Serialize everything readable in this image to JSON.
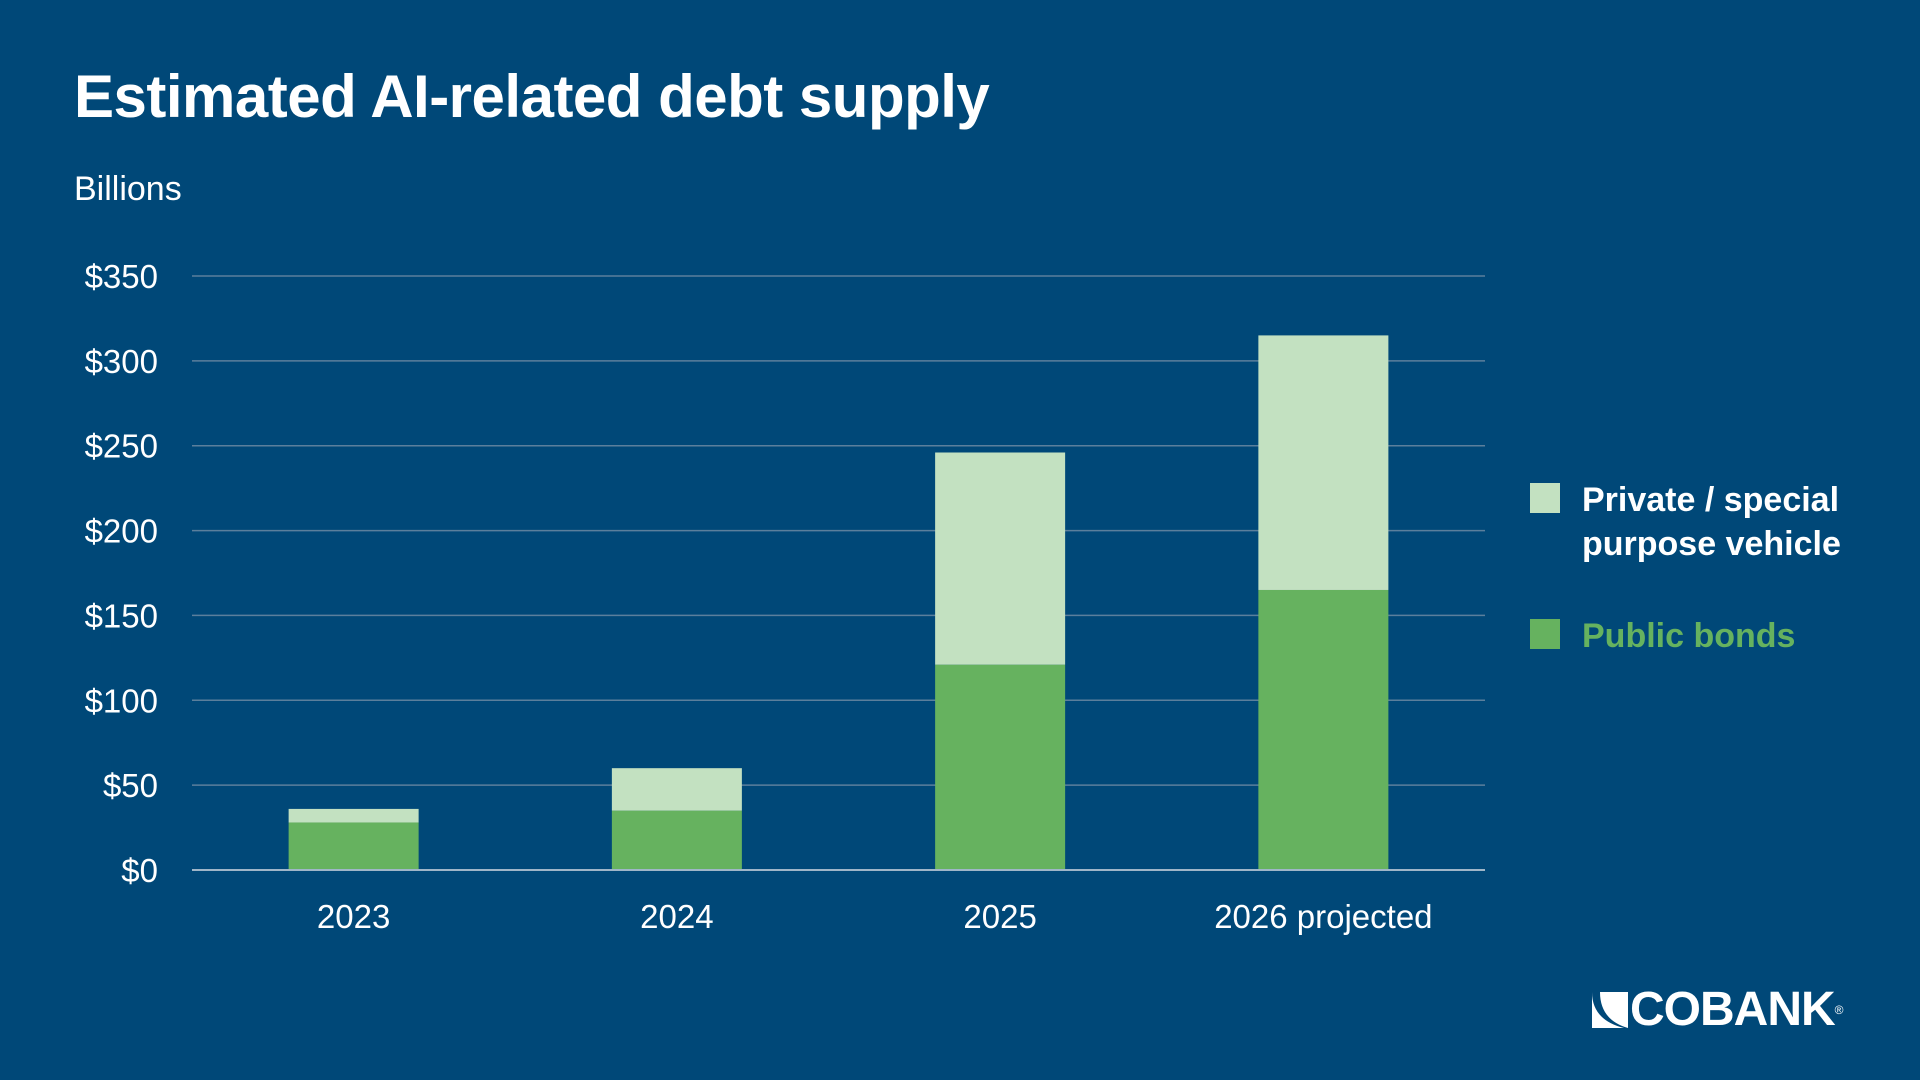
{
  "title": "Estimated AI-related debt supply",
  "unit_label": "Billions",
  "chart_data": {
    "type": "bar",
    "stacked": true,
    "categories": [
      "2023",
      "2024",
      "2025",
      "2026 projected"
    ],
    "series": [
      {
        "name": "Public bonds",
        "values": [
          28,
          35,
          121,
          165
        ],
        "color": "#66b25f"
      },
      {
        "name": "Private / special purpose vehicle",
        "values": [
          8,
          25,
          125,
          150
        ],
        "color": "#c3e1c1"
      }
    ],
    "ylim": [
      0,
      350
    ],
    "yticks": [
      0,
      50,
      100,
      150,
      200,
      250,
      300,
      350
    ],
    "ytick_labels": [
      "$0",
      "$50",
      "$100",
      "$150",
      "$200",
      "$250",
      "$300",
      "$350"
    ],
    "grid": true,
    "legend_position": "right"
  },
  "legend": [
    {
      "label": "Private / special purpose vehicle",
      "color": "#c3e1c1",
      "text_color": "#ffffff"
    },
    {
      "label": "Public bonds",
      "color": "#66b25f",
      "text_color": "#66b25f"
    }
  ],
  "logo": {
    "text": "COBANK",
    "mark": "®"
  },
  "colors": {
    "background": "#004878",
    "grid": "#5b7f9c",
    "axis": "#9fb6c8"
  }
}
